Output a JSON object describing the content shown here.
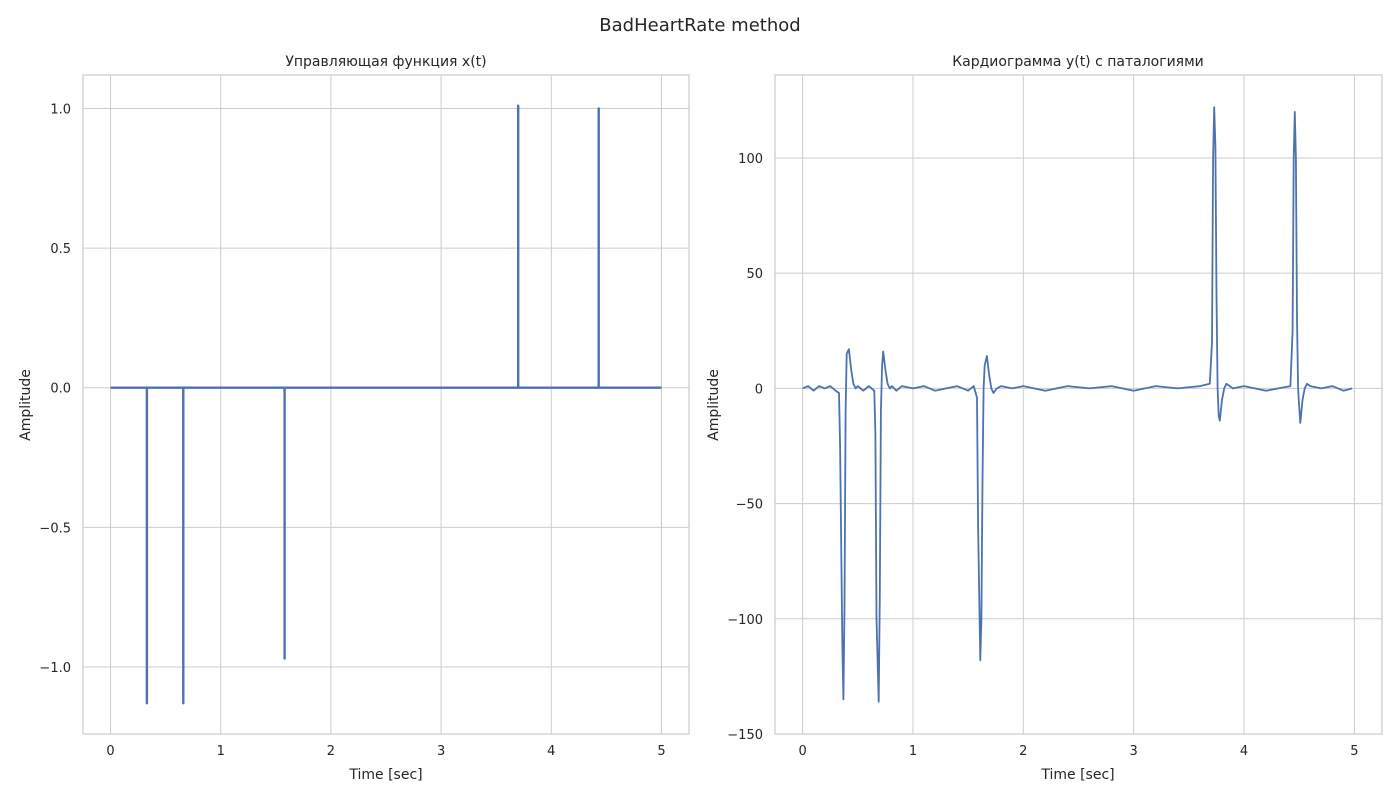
{
  "figure": {
    "suptitle": "BadHeartRate method",
    "line_color": "#4c72b0",
    "grid_color": "#cccccc",
    "background": "#ffffff"
  },
  "chart_data": [
    {
      "type": "line",
      "title": "Управляющая функция x(t)",
      "xlabel": "Time [sec]",
      "ylabel": "Amplitude",
      "xlim": [
        -0.25,
        5.25
      ],
      "ylim": [
        -1.24,
        1.12
      ],
      "xticks": [
        0,
        1,
        2,
        3,
        4,
        5
      ],
      "xtick_labels": [
        "0",
        "1",
        "2",
        "3",
        "4",
        "5"
      ],
      "yticks": [
        -1.0,
        -0.5,
        0.0,
        0.5,
        1.0
      ],
      "ytick_labels": [
        "−1.0",
        "−0.5",
        "0.0",
        "0.5",
        "1.0"
      ],
      "grid": true,
      "series": [
        {
          "x": [
            0,
            0.33,
            0.33,
            0.33,
            0.66,
            0.66,
            0.66,
            1.58,
            1.58,
            1.58,
            3.7,
            3.7,
            3.7,
            4.43,
            4.43,
            4.43,
            5.0
          ],
          "y": [
            0,
            0,
            -1.13,
            0,
            0,
            -1.13,
            0,
            0,
            -0.97,
            0,
            0,
            1.01,
            0,
            0,
            1.0,
            0,
            0
          ]
        }
      ]
    },
    {
      "type": "line",
      "title": "Кардиограмма y(t) с паталогиями",
      "xlabel": "Time [sec]",
      "ylabel": "Amplitude",
      "xlim": [
        -0.25,
        5.25
      ],
      "ylim": [
        -150,
        136
      ],
      "xticks": [
        0,
        1,
        2,
        3,
        4,
        5
      ],
      "xtick_labels": [
        "0",
        "1",
        "2",
        "3",
        "4",
        "5"
      ],
      "yticks": [
        -150,
        -100,
        -50,
        0,
        50,
        100
      ],
      "ytick_labels": [
        "−150",
        "−100",
        "−50",
        "0",
        "50",
        "100"
      ],
      "grid": true,
      "series": [
        {
          "x": [
            0,
            0.05,
            0.1,
            0.15,
            0.2,
            0.25,
            0.3,
            0.33,
            0.34,
            0.36,
            0.37,
            0.38,
            0.39,
            0.4,
            0.42,
            0.44,
            0.46,
            0.48,
            0.5,
            0.55,
            0.6,
            0.65,
            0.66,
            0.67,
            0.69,
            0.7,
            0.71,
            0.72,
            0.73,
            0.75,
            0.77,
            0.79,
            0.81,
            0.85,
            0.9,
            1.0,
            1.1,
            1.2,
            1.3,
            1.4,
            1.5,
            1.55,
            1.58,
            1.59,
            1.61,
            1.62,
            1.63,
            1.64,
            1.65,
            1.67,
            1.69,
            1.71,
            1.73,
            1.76,
            1.8,
            1.9,
            2.0,
            2.2,
            2.4,
            2.6,
            2.8,
            3.0,
            3.2,
            3.4,
            3.6,
            3.69,
            3.71,
            3.72,
            3.73,
            3.74,
            3.75,
            3.76,
            3.77,
            3.78,
            3.8,
            3.82,
            3.84,
            3.87,
            3.9,
            4.0,
            4.2,
            4.42,
            4.44,
            4.45,
            4.46,
            4.47,
            4.48,
            4.49,
            4.5,
            4.51,
            4.53,
            4.55,
            4.57,
            4.6,
            4.7,
            4.8,
            4.9,
            4.98
          ],
          "y": [
            0,
            1,
            -1,
            1,
            0,
            1,
            -1,
            -2,
            -25,
            -110,
            -135,
            -95,
            -10,
            15,
            17,
            8,
            2,
            0,
            1,
            -1,
            1,
            -1,
            -20,
            -100,
            -136,
            -90,
            -10,
            10,
            16,
            8,
            2,
            0,
            1,
            -1,
            1,
            0,
            1,
            -1,
            0,
            1,
            -1,
            1,
            -4,
            -60,
            -118,
            -100,
            -40,
            0,
            10,
            14,
            6,
            0,
            -2,
            0,
            1,
            0,
            1,
            -1,
            1,
            0,
            1,
            -1,
            1,
            0,
            1,
            2,
            20,
            100,
            122,
            105,
            40,
            0,
            -12,
            -14,
            -5,
            0,
            2,
            1,
            0,
            1,
            -1,
            1,
            25,
            100,
            120,
            100,
            30,
            0,
            -8,
            -15,
            -5,
            0,
            2,
            1,
            0,
            1,
            -1,
            0
          ]
        }
      ]
    }
  ]
}
